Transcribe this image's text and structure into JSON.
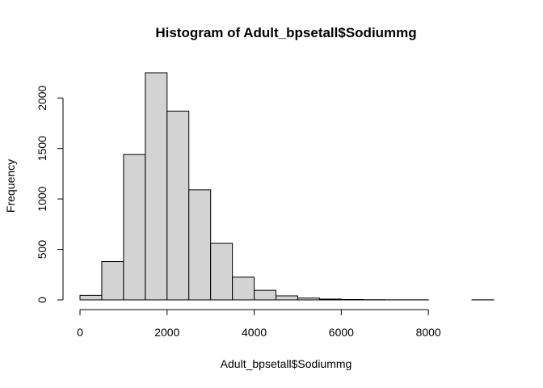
{
  "chart_data": {
    "type": "bar",
    "title": "Histogram of Adult_bpsetall$Sodiummg",
    "xlabel": "Adult_bpsetall$Sodiummg",
    "ylabel": "Frequency",
    "xlim": [
      0,
      9500
    ],
    "ylim": [
      0,
      2250
    ],
    "xticks": [
      0,
      2000,
      4000,
      6000,
      8000
    ],
    "yticks": [
      0,
      500,
      1000,
      1500,
      2000
    ],
    "bin_width": 500,
    "bins": [
      {
        "start": 0,
        "end": 500,
        "count": 45
      },
      {
        "start": 500,
        "end": 1000,
        "count": 380
      },
      {
        "start": 1000,
        "end": 1500,
        "count": 1440
      },
      {
        "start": 1500,
        "end": 2000,
        "count": 2250
      },
      {
        "start": 2000,
        "end": 2500,
        "count": 1870
      },
      {
        "start": 2500,
        "end": 3000,
        "count": 1090
      },
      {
        "start": 3000,
        "end": 3500,
        "count": 560
      },
      {
        "start": 3500,
        "end": 4000,
        "count": 225
      },
      {
        "start": 4000,
        "end": 4500,
        "count": 95
      },
      {
        "start": 4500,
        "end": 5000,
        "count": 40
      },
      {
        "start": 5000,
        "end": 5500,
        "count": 18
      },
      {
        "start": 5500,
        "end": 6000,
        "count": 8
      },
      {
        "start": 6000,
        "end": 6500,
        "count": 4
      },
      {
        "start": 6500,
        "end": 7000,
        "count": 2
      },
      {
        "start": 7000,
        "end": 7500,
        "count": 1
      },
      {
        "start": 7500,
        "end": 8000,
        "count": 1
      },
      {
        "start": 8000,
        "end": 8500,
        "count": 0
      },
      {
        "start": 8500,
        "end": 9000,
        "count": 0
      },
      {
        "start": 9000,
        "end": 9500,
        "count": 1
      }
    ],
    "grid": false,
    "bar_fill": "#d3d3d3",
    "bar_stroke": "#000000"
  }
}
